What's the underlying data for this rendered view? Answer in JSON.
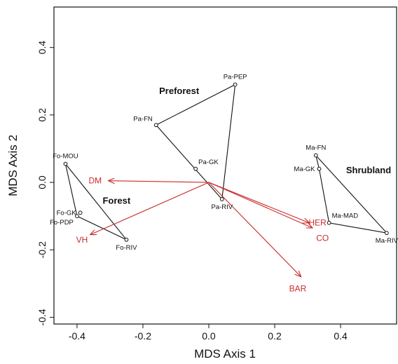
{
  "chart_data": {
    "type": "scatter",
    "xlabel": "MDS Axis 1",
    "ylabel": "MDS Axis 2",
    "xlim": [
      -0.47,
      0.57
    ],
    "ylim": [
      -0.42,
      0.52
    ],
    "xticks": [
      -0.4,
      -0.2,
      0.0,
      0.2,
      0.4
    ],
    "yticks": [
      -0.4,
      -0.2,
      0.0,
      0.2,
      0.4
    ],
    "xtick_labels": [
      "-0.4",
      "-0.2",
      "0.0",
      "0.2",
      "0.4"
    ],
    "ytick_labels": [
      "-0.4",
      "-0.2",
      "0.0",
      "0.2",
      "0.4"
    ],
    "grid": false,
    "sites": [
      {
        "name": "Fo-MOU",
        "x": -0.435,
        "y": 0.055,
        "group": "Forest",
        "label_pos": "above"
      },
      {
        "name": "Fo-GK",
        "x": -0.39,
        "y": -0.09,
        "group": "Forest",
        "label_pos": "left"
      },
      {
        "name": "Fo-PDP",
        "x": -0.4,
        "y": -0.1,
        "group": "Forest",
        "label_pos": "below-left"
      },
      {
        "name": "Fo-RIV",
        "x": -0.25,
        "y": -0.17,
        "group": "Forest",
        "label_pos": "below"
      },
      {
        "name": "Pa-FN",
        "x": -0.16,
        "y": 0.17,
        "group": "Preforest",
        "label_pos": "above-left"
      },
      {
        "name": "Pa-PEP",
        "x": 0.08,
        "y": 0.29,
        "group": "Preforest",
        "label_pos": "above"
      },
      {
        "name": "Pa-GK",
        "x": -0.04,
        "y": 0.04,
        "group": "Preforest",
        "label_pos": "above-right"
      },
      {
        "name": "Pa-RIV",
        "x": 0.04,
        "y": -0.05,
        "group": "Preforest",
        "label_pos": "below"
      },
      {
        "name": "Ma-FN",
        "x": 0.325,
        "y": 0.08,
        "group": "Shrubland",
        "label_pos": "above"
      },
      {
        "name": "Ma-GK",
        "x": 0.335,
        "y": 0.04,
        "group": "Shrubland",
        "label_pos": "left"
      },
      {
        "name": "Ma-MAD",
        "x": 0.365,
        "y": -0.12,
        "group": "Shrubland",
        "label_pos": "above-right"
      },
      {
        "name": "Ma-RIV",
        "x": 0.54,
        "y": -0.15,
        "group": "Shrubland",
        "label_pos": "below"
      }
    ],
    "hulls": [
      {
        "group": "Forest",
        "vertices": [
          "Fo-MOU",
          "Fo-RIV",
          "Fo-PDP"
        ]
      },
      {
        "group": "Preforest",
        "vertices": [
          "Pa-FN",
          "Pa-PEP",
          "Pa-RIV"
        ]
      },
      {
        "group": "Shrubland",
        "vertices": [
          "Ma-FN",
          "Ma-RIV",
          "Ma-MAD",
          "Ma-GK"
        ]
      }
    ],
    "group_labels": [
      {
        "text": "Forest",
        "x": -0.28,
        "y": -0.055
      },
      {
        "text": "Preforest",
        "x": -0.09,
        "y": 0.27
      },
      {
        "text": "Shrubland",
        "x": 0.485,
        "y": 0.035
      }
    ],
    "vector_origin": {
      "x": 0.0,
      "y": 0.0
    },
    "vectors": [
      {
        "name": "DM",
        "x": -0.305,
        "y": 0.005,
        "label_x": -0.345,
        "label_y": 0.005
      },
      {
        "name": "VH",
        "x": -0.36,
        "y": -0.155,
        "label_x": -0.385,
        "label_y": -0.17
      },
      {
        "name": "HER",
        "x": 0.305,
        "y": -0.12,
        "label_x": 0.33,
        "label_y": -0.12
      },
      {
        "name": "CO",
        "x": 0.315,
        "y": -0.135,
        "label_x": 0.345,
        "label_y": -0.165
      },
      {
        "name": "BAR",
        "x": 0.28,
        "y": -0.28,
        "label_x": 0.27,
        "label_y": -0.315
      }
    ],
    "colors": {
      "vectors": "#cc2a2a",
      "hull": "#111111",
      "points": "#111111"
    }
  }
}
